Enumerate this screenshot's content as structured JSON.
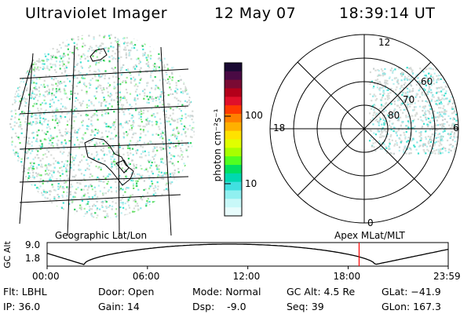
{
  "header": {
    "instrument": "Ultraviolet Imager",
    "date": "12 May 07",
    "time": "18:39:14 UT"
  },
  "colorbar": {
    "unit_label": "photon cm⁻²s⁻¹",
    "tick_100": "100",
    "tick_10": "10",
    "colors_top_to_bottom": [
      "#1a0a33",
      "#4a0a44",
      "#7a0a33",
      "#b3001a",
      "#e0102a",
      "#ff3a00",
      "#ff8000",
      "#ffb000",
      "#ffe200",
      "#e0ff00",
      "#a8ff00",
      "#50ff20",
      "#00e060",
      "#00d8b0",
      "#40e0e0",
      "#90f0f0",
      "#c8f8f8",
      "#e8fcfc"
    ]
  },
  "geo_panel": {
    "label": "Geographic Lat/Lon"
  },
  "polar_panel": {
    "label": "Apex MLat/MLT",
    "mlt_12": "12",
    "mlt_18": "18",
    "mlt_6": "6",
    "mlt_0": "0",
    "lat_60": "60",
    "lat_70": "70",
    "lat_80": "80"
  },
  "altitude_plot": {
    "axis_label": "GC Alt",
    "y_top": "9.0",
    "y_bottom": "1.8",
    "x_ticks": [
      "00:00",
      "06:00",
      "12:00",
      "18:00",
      "23:59"
    ],
    "marker_time_hours": 18.654,
    "marker_color": "#ff0000"
  },
  "footer": {
    "flt": "Flt: LBHL",
    "ip": "IP: 36.0",
    "door": "Door: Open",
    "gain": "Gain: 14",
    "mode": "Mode: Normal",
    "dsp": "Dsp:    -9.0",
    "gc_alt": "GC Alt: 4.5 Re",
    "seq": "Seq: 39",
    "glat": "GLat: −41.9",
    "glon": "GLon: 167.3"
  }
}
